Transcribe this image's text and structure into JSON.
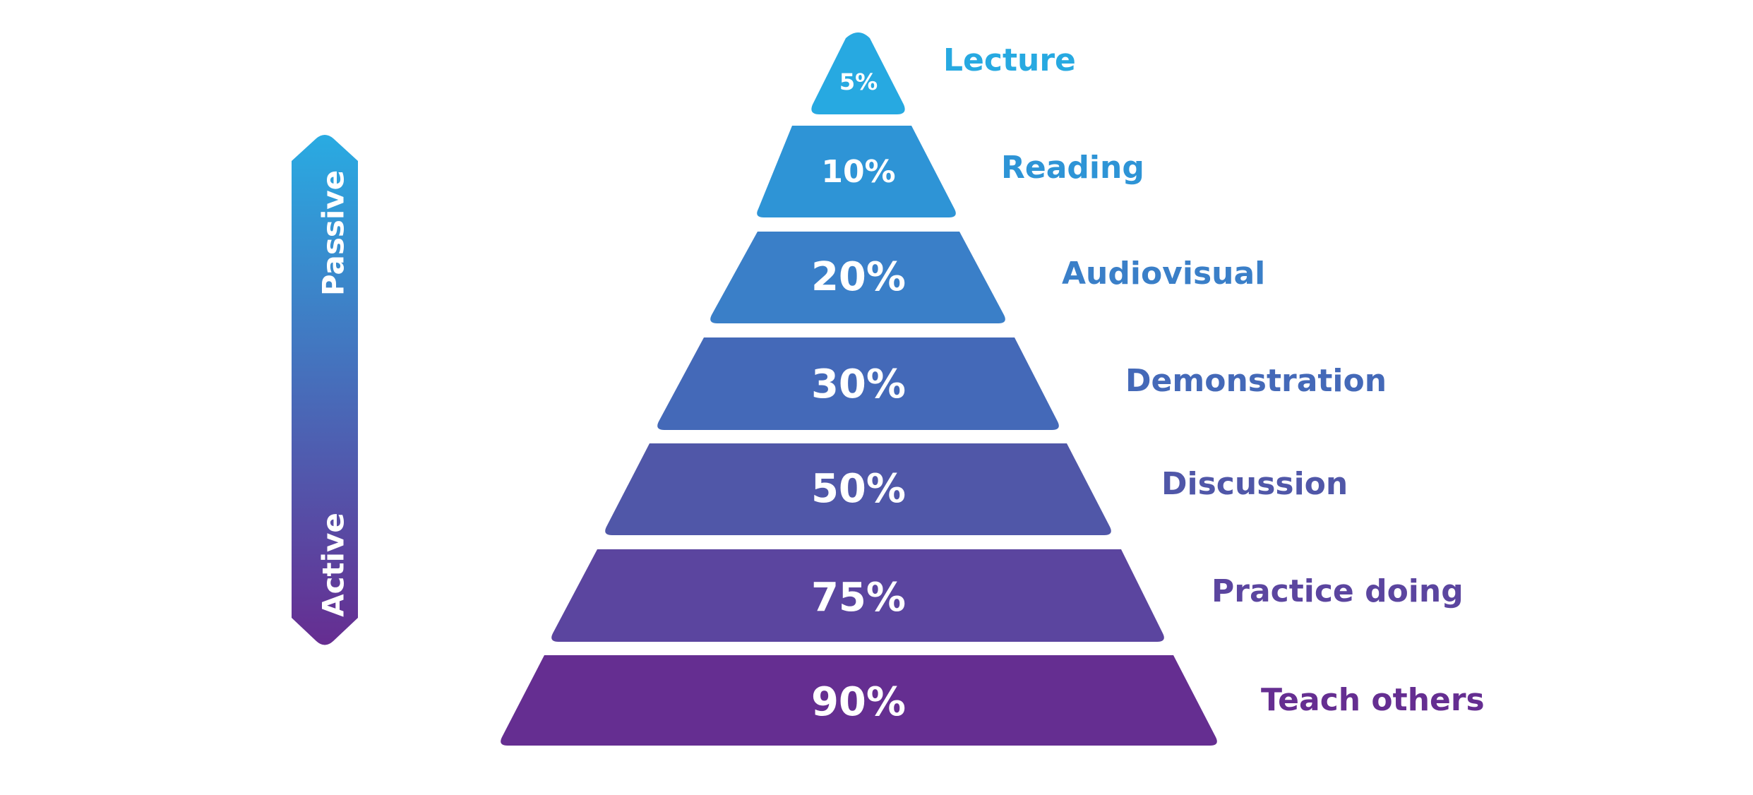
{
  "axis": {
    "top_label": "Passive",
    "bottom_label": "Active",
    "top_color": "#29ABE2",
    "bottom_color": "#662D91"
  },
  "levels": [
    {
      "percent": "5%",
      "label": "Lecture",
      "color": "#27A9E1"
    },
    {
      "percent": "10%",
      "label": "Reading",
      "color": "#2E94D6"
    },
    {
      "percent": "20%",
      "label": "Audiovisual",
      "color": "#3A7FC8"
    },
    {
      "percent": "30%",
      "label": "Demonstration",
      "color": "#4469B8"
    },
    {
      "percent": "50%",
      "label": "Discussion",
      "color": "#5057A8"
    },
    {
      "percent": "75%",
      "label": "Practice doing",
      "color": "#5B459F"
    },
    {
      "percent": "90%",
      "label": "Teach others",
      "color": "#652E91"
    }
  ]
}
